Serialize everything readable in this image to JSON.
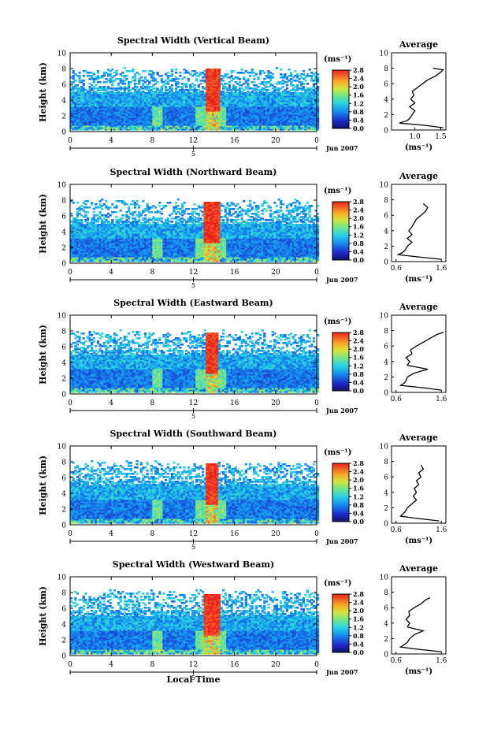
{
  "chart_data": [
    {
      "type": "heatmap",
      "title": "Spectral Width (Vertical Beam)",
      "xlabel": "",
      "ylabel": "Height (km)",
      "x_ticks": [
        "0",
        "4",
        "8",
        "12",
        "16",
        "20",
        "0"
      ],
      "y_ticks": [
        "0",
        "2",
        "4",
        "6",
        "8",
        "10"
      ],
      "xlim": [
        0,
        24
      ],
      "ylim": [
        0,
        10
      ],
      "date_axis": {
        "day": "5",
        "label": "Jun 2007"
      },
      "colorbar": {
        "unit": "(ms⁻¹)",
        "ticks": [
          "0.0",
          "0.4",
          "0.8",
          "1.2",
          "1.6",
          "2.0",
          "2.4",
          "2.8"
        ],
        "range": [
          0,
          2.8
        ]
      },
      "features": {
        "top_km": 7.6,
        "convection_start_h": 13.1,
        "convection_end_h": 14.4,
        "convection_top_km": 8.0
      },
      "average_profile": {
        "title": "Average",
        "xlabel": "(ms⁻¹)",
        "ylabel": "",
        "x_ticks": [
          "1.0",
          "1.5"
        ],
        "xlim": [
          0.55,
          1.6
        ],
        "y_ticks": [
          "0",
          "2",
          "4",
          "6",
          "8",
          "10"
        ],
        "ylim": [
          0,
          10
        ],
        "heights": [
          0.3,
          0.6,
          0.9,
          1.2,
          1.5,
          2.0,
          2.5,
          3.0,
          3.5,
          4.0,
          4.5,
          5.0,
          5.5,
          6.0,
          6.5,
          7.0,
          7.5,
          7.8,
          8.0
        ],
        "values": [
          1.55,
          1.2,
          0.7,
          0.85,
          0.9,
          0.95,
          1.0,
          0.9,
          1.0,
          0.92,
          0.98,
          0.95,
          1.05,
          1.15,
          1.25,
          1.4,
          1.5,
          1.55,
          1.35
        ]
      }
    },
    {
      "type": "heatmap",
      "title": "Spectral Width (Northward Beam)",
      "xlabel": "",
      "ylabel": "Height (km)",
      "x_ticks": [
        "0",
        "4",
        "8",
        "12",
        "16",
        "20",
        "0"
      ],
      "y_ticks": [
        "0",
        "2",
        "4",
        "6",
        "8",
        "10"
      ],
      "xlim": [
        0,
        24
      ],
      "ylim": [
        0,
        10
      ],
      "date_axis": {
        "day": "5",
        "label": "Jun 2007"
      },
      "colorbar": {
        "unit": "(ms⁻¹)",
        "ticks": [
          "0.0",
          "0.4",
          "0.8",
          "1.2",
          "1.6",
          "2.0",
          "2.4",
          "2.8"
        ],
        "range": [
          0,
          2.8
        ]
      },
      "features": {
        "top_km": 7.5,
        "convection_start_h": 12.8,
        "convection_end_h": 14.4,
        "convection_top_km": 7.8
      },
      "average_profile": {
        "title": "Average",
        "xlabel": "(ms⁻¹)",
        "ylabel": "",
        "x_ticks": [
          "0.6",
          "1.6"
        ],
        "xlim": [
          0.5,
          1.7
        ],
        "y_ticks": [
          "0",
          "2",
          "4",
          "6",
          "8",
          "10"
        ],
        "ylim": [
          0,
          10
        ],
        "heights": [
          0.3,
          0.6,
          0.9,
          1.2,
          1.5,
          2.0,
          2.5,
          3.0,
          3.5,
          4.0,
          4.5,
          5.0,
          5.5,
          6.0,
          6.5,
          7.0,
          7.5
        ],
        "values": [
          1.6,
          1.1,
          0.65,
          0.75,
          0.8,
          0.85,
          0.95,
          0.85,
          0.95,
          0.88,
          0.95,
          1.0,
          1.05,
          1.15,
          1.25,
          1.3,
          1.2
        ]
      }
    },
    {
      "type": "heatmap",
      "title": "Spectral Width (Eastward Beam)",
      "xlabel": "",
      "ylabel": "Height (km)",
      "x_ticks": [
        "0",
        "4",
        "8",
        "12",
        "16",
        "20",
        "0"
      ],
      "y_ticks": [
        "0",
        "2",
        "4",
        "6",
        "8",
        "10"
      ],
      "xlim": [
        0,
        24
      ],
      "ylim": [
        0,
        10
      ],
      "date_axis": {
        "day": "5",
        "label": "Jun 2007"
      },
      "colorbar": {
        "unit": "(ms⁻¹)",
        "ticks": [
          "0.0",
          "0.4",
          "0.8",
          "1.2",
          "1.6",
          "2.0",
          "2.4",
          "2.8"
        ],
        "range": [
          0,
          2.8
        ]
      },
      "features": {
        "top_km": 7.6,
        "convection_start_h": 13.0,
        "convection_end_h": 14.3,
        "convection_top_km": 7.8
      },
      "average_profile": {
        "title": "Average",
        "xlabel": "",
        "ylabel": "",
        "x_ticks": [
          "0.6",
          "1.6"
        ],
        "xlim": [
          0.5,
          1.7
        ],
        "y_ticks": [
          "0",
          "2",
          "4",
          "6",
          "8",
          "10"
        ],
        "ylim": [
          0,
          10
        ],
        "heights": [
          0.3,
          0.6,
          0.9,
          1.2,
          1.5,
          2.0,
          2.5,
          3.0,
          3.5,
          4.0,
          4.5,
          5.0,
          5.5,
          6.0,
          6.5,
          7.0,
          7.5,
          7.8
        ],
        "values": [
          1.6,
          1.2,
          0.7,
          0.78,
          0.82,
          0.85,
          1.0,
          1.3,
          0.85,
          0.9,
          0.82,
          0.95,
          0.92,
          1.05,
          1.2,
          1.35,
          1.5,
          1.65
        ]
      }
    },
    {
      "type": "heatmap",
      "title": "Spectral Width (Southward Beam)",
      "xlabel": "",
      "ylabel": "Height (km)",
      "x_ticks": [
        "0",
        "4",
        "8",
        "12",
        "16",
        "20",
        "0"
      ],
      "y_ticks": [
        "0",
        "2",
        "4",
        "6",
        "8",
        "10"
      ],
      "xlim": [
        0,
        24
      ],
      "ylim": [
        0,
        10
      ],
      "date_axis": {
        "day": "5",
        "label": "Jun 2007"
      },
      "colorbar": {
        "unit": "(ms⁻¹)",
        "ticks": [
          "0.0",
          "0.4",
          "0.8",
          "1.2",
          "1.6",
          "2.0",
          "2.4",
          "2.8"
        ],
        "range": [
          0,
          2.8
        ]
      },
      "features": {
        "top_km": 7.5,
        "convection_start_h": 13.0,
        "convection_end_h": 14.3,
        "convection_top_km": 7.8
      },
      "average_profile": {
        "title": "Average",
        "xlabel": "(ms⁻¹)",
        "ylabel": "",
        "x_ticks": [
          "0.6",
          "1.6"
        ],
        "xlim": [
          0.5,
          1.7
        ],
        "y_ticks": [
          "0",
          "2",
          "4",
          "6",
          "8",
          "10"
        ],
        "ylim": [
          0,
          10
        ],
        "heights": [
          0.3,
          0.6,
          0.9,
          1.2,
          1.5,
          2.0,
          2.5,
          3.0,
          3.5,
          4.0,
          4.5,
          5.0,
          5.5,
          6.0,
          6.5,
          7.0,
          7.5
        ],
        "values": [
          1.55,
          1.1,
          0.7,
          0.75,
          0.8,
          0.85,
          0.95,
          1.05,
          0.98,
          1.05,
          1.0,
          1.1,
          1.05,
          1.15,
          1.1,
          1.2,
          1.15
        ]
      }
    },
    {
      "type": "heatmap",
      "title": "Spectral Width (Westward Beam)",
      "xlabel": "Local Time",
      "ylabel": "Height (km)",
      "x_ticks": [
        "0",
        "4",
        "8",
        "12",
        "16",
        "20",
        "0"
      ],
      "y_ticks": [
        "0",
        "2",
        "4",
        "6",
        "8",
        "10"
      ],
      "xlim": [
        0,
        24
      ],
      "ylim": [
        0,
        10
      ],
      "date_axis": {
        "day": "5",
        "label": "Jun 2007"
      },
      "colorbar": {
        "unit": "(ms⁻¹)",
        "ticks": [
          "0.0",
          "0.4",
          "0.8",
          "1.2",
          "1.6",
          "2.0",
          "2.4",
          "2.8"
        ],
        "range": [
          0,
          2.8
        ]
      },
      "features": {
        "top_km": 7.8,
        "convection_start_h": 12.9,
        "convection_end_h": 14.4,
        "convection_top_km": 7.8
      },
      "average_profile": {
        "title": "Average",
        "xlabel": "(ms⁻¹)",
        "ylabel": "",
        "x_ticks": [
          "0.6",
          "1.6"
        ],
        "xlim": [
          0.5,
          1.7
        ],
        "y_ticks": [
          "0",
          "2",
          "4",
          "6",
          "8",
          "10"
        ],
        "ylim": [
          0,
          10
        ],
        "heights": [
          0.3,
          0.6,
          0.9,
          1.2,
          1.5,
          2.0,
          2.5,
          3.0,
          3.5,
          4.0,
          4.5,
          5.0,
          5.5,
          6.0,
          6.5,
          7.0,
          7.3
        ],
        "values": [
          1.6,
          1.1,
          0.7,
          0.78,
          0.85,
          0.9,
          1.0,
          1.2,
          0.85,
          0.9,
          0.82,
          0.9,
          0.88,
          1.0,
          1.15,
          1.25,
          1.35
        ]
      }
    }
  ]
}
